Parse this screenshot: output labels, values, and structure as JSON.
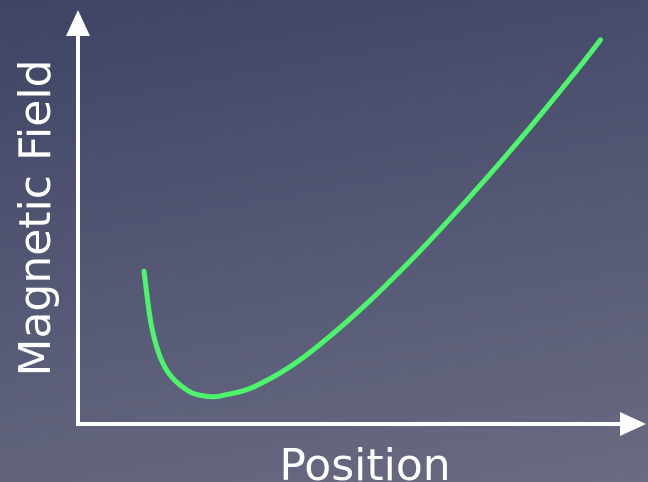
{
  "chart_data": {
    "type": "line",
    "xlabel": "Position",
    "ylabel": "Magnetic Field",
    "xlim": [
      0,
      10
    ],
    "ylim": [
      0,
      10
    ],
    "grid": false,
    "legend": "none",
    "series": [
      {
        "color": "#4cf56c",
        "x": [
          1.2,
          1.35,
          1.6,
          2.0,
          2.4,
          2.7,
          3.2,
          4.0,
          5.0,
          6.0,
          7.0,
          8.0,
          9.0,
          9.5
        ],
        "y": [
          3.9,
          2.4,
          1.4,
          0.85,
          0.7,
          0.75,
          0.95,
          1.6,
          2.75,
          4.1,
          5.6,
          7.2,
          8.9,
          9.8
        ]
      }
    ]
  }
}
